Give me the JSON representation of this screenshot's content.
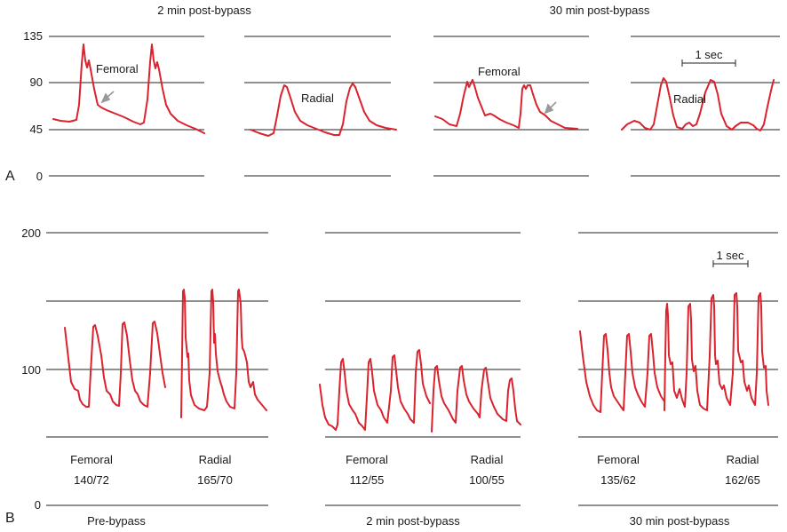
{
  "panel_a": {
    "letter": "A",
    "headers": [
      "2 min post-bypass",
      "30 min post-bypass"
    ],
    "yticks": [
      "135",
      "90",
      "45",
      "0"
    ],
    "labels": {
      "femoral_1": "Femoral",
      "radial_1": "Radial",
      "femoral_2": "Femoral",
      "radial_2": "Radial"
    },
    "scale_bar": "1 sec"
  },
  "panel_b": {
    "letter": "B",
    "yticks": [
      "200",
      "100",
      "0"
    ],
    "scale_bar": "1 sec",
    "columns": [
      {
        "femoral_label": "Femoral",
        "femoral_value": "140/72",
        "radial_label": "Radial",
        "radial_value": "165/70",
        "caption": "Pre-bypass"
      },
      {
        "femoral_label": "Femoral",
        "femoral_value": "112/55",
        "radial_label": "Radial",
        "radial_value": "100/55",
        "caption": "2 min post-bypass"
      },
      {
        "femoral_label": "Femoral",
        "femoral_value": "135/62",
        "radial_label": "Radial",
        "radial_value": "162/65",
        "caption": "30 min post-bypass"
      }
    ]
  },
  "colors": {
    "trace": "#d9232e",
    "grid": "#222222",
    "arrow": "#999999"
  }
}
